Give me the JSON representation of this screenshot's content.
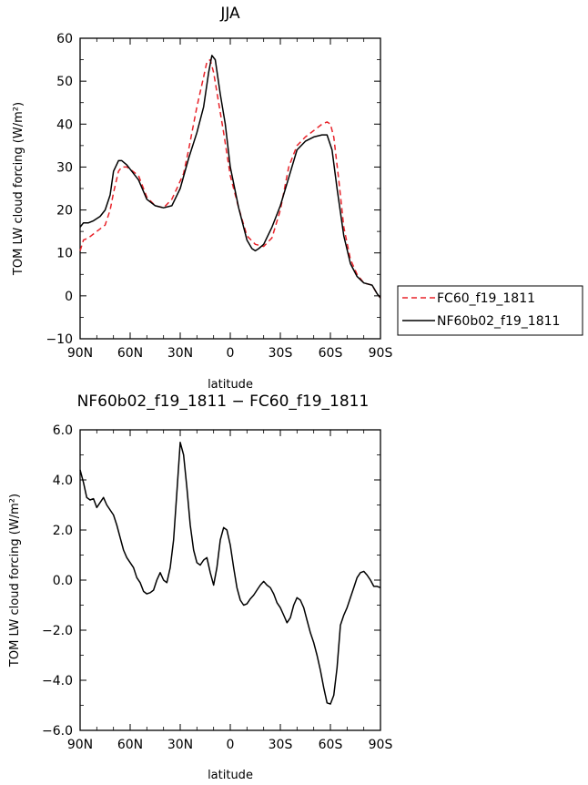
{
  "chart_data": [
    {
      "type": "line",
      "title": "JJA",
      "xlabel": "latitude",
      "ylabel": "TOM LW cloud forcing (W/m²)",
      "xticks": [
        "90N",
        "60N",
        "30N",
        "0",
        "30S",
        "60S",
        "90S"
      ],
      "yticks": [
        "60",
        "50",
        "40",
        "30",
        "20",
        "10",
        "0",
        "−10"
      ],
      "xlim": [
        90,
        -90
      ],
      "ylim": [
        -10,
        60
      ],
      "series": [
        {
          "name": "FC60_f19_1811",
          "color": "#e8232a",
          "dash": "dashed",
          "x": [
            90,
            88,
            85,
            80,
            75,
            72,
            70,
            67,
            65,
            62,
            60,
            55,
            50,
            45,
            40,
            35,
            32,
            28,
            25,
            20,
            16,
            14,
            12,
            10,
            7,
            4,
            0,
            -5,
            -10,
            -15,
            -20,
            -25,
            -30,
            -35,
            -40,
            -45,
            -50,
            -55,
            -58,
            -60,
            -62,
            -65,
            -68,
            -72,
            -76,
            -80,
            -85,
            -88,
            -90
          ],
          "y": [
            10.5,
            13,
            13.5,
            15,
            16.5,
            20,
            24,
            29,
            30,
            30,
            29.5,
            28,
            23,
            21,
            20.5,
            22.5,
            25,
            28.5,
            34,
            44,
            51,
            54.5,
            55,
            52,
            45,
            38,
            28,
            20.5,
            14,
            12,
            11.5,
            13.5,
            20,
            30,
            35,
            37,
            38.5,
            40,
            40.5,
            40,
            37,
            27,
            16,
            8.5,
            5,
            3,
            2.5,
            0.5,
            -0.5
          ]
        },
        {
          "name": "NF60b02_f19_1811",
          "color": "#000000",
          "dash": "solid",
          "x": [
            90,
            88,
            85,
            82,
            78,
            75,
            72,
            70,
            67,
            65,
            62,
            60,
            55,
            50,
            45,
            40,
            35,
            30,
            25,
            20,
            16,
            13,
            11,
            9,
            6,
            3,
            0,
            -5,
            -10,
            -13,
            -15,
            -17,
            -20,
            -25,
            -30,
            -35,
            -40,
            -45,
            -50,
            -55,
            -58,
            -61,
            -64,
            -68,
            -72,
            -76,
            -80,
            -85,
            -88,
            -90
          ],
          "y": [
            16,
            17,
            17,
            17.5,
            18.5,
            20,
            23.5,
            29,
            31.5,
            31.5,
            30.5,
            29.5,
            27,
            22.5,
            21,
            20.5,
            21,
            25,
            32,
            38,
            44,
            52,
            56,
            55,
            47,
            40,
            30,
            20.5,
            13,
            11,
            10.5,
            11,
            12,
            16,
            21,
            27.5,
            34,
            36,
            37,
            37.5,
            37.5,
            34,
            25,
            14,
            7.5,
            4.5,
            3,
            2.5,
            0.5,
            -0.5
          ]
        }
      ],
      "legend": {
        "placement": "right"
      }
    },
    {
      "type": "line",
      "title": "NF60b02_f19_1811 − FC60_f19_1811",
      "xlabel": "latitude",
      "ylabel": "TOM LW cloud forcing (W/m²)",
      "xticks": [
        "90N",
        "60N",
        "30N",
        "0",
        "30S",
        "60S",
        "90S"
      ],
      "yticks": [
        "6.0",
        "4.0",
        "2.0",
        "0.0",
        "−2.0",
        "−4.0",
        "−6.0"
      ],
      "xlim": [
        90,
        -90
      ],
      "ylim": [
        -6,
        6
      ],
      "series": [
        {
          "name": "",
          "color": "#000000",
          "dash": "solid",
          "x": [
            90,
            88,
            86,
            84,
            82,
            80,
            78,
            76,
            74,
            72,
            70,
            68,
            66,
            64,
            62,
            60,
            58,
            56,
            54,
            52,
            50,
            48,
            46,
            44,
            42,
            40,
            38,
            36,
            34,
            32,
            30,
            28,
            26,
            24,
            22,
            20,
            18,
            16,
            14,
            12,
            10,
            8,
            6,
            4,
            2,
            0,
            -2,
            -4,
            -6,
            -8,
            -10,
            -12,
            -14,
            -16,
            -18,
            -20,
            -22,
            -24,
            -26,
            -28,
            -30,
            -32,
            -34,
            -36,
            -38,
            -40,
            -42,
            -44,
            -46,
            -48,
            -50,
            -52,
            -54,
            -56,
            -58,
            -60,
            -62,
            -64,
            -66,
            -68,
            -70,
            -72,
            -74,
            -76,
            -78,
            -80,
            -82,
            -84,
            -86,
            -88,
            -90
          ],
          "y": [
            4.4,
            3.9,
            3.3,
            3.2,
            3.25,
            2.9,
            3.1,
            3.3,
            3.0,
            2.8,
            2.6,
            2.2,
            1.7,
            1.2,
            0.9,
            0.7,
            0.5,
            0.1,
            -0.1,
            -0.45,
            -0.55,
            -0.5,
            -0.4,
            0.0,
            0.3,
            0.0,
            -0.1,
            0.5,
            1.6,
            3.5,
            5.5,
            5.0,
            3.7,
            2.2,
            1.2,
            0.7,
            0.6,
            0.8,
            0.9,
            0.3,
            -0.2,
            0.5,
            1.6,
            2.1,
            2.0,
            1.4,
            0.5,
            -0.3,
            -0.8,
            -1.0,
            -0.95,
            -0.75,
            -0.6,
            -0.4,
            -0.2,
            -0.05,
            -0.2,
            -0.3,
            -0.55,
            -0.9,
            -1.1,
            -1.4,
            -1.7,
            -1.5,
            -1.0,
            -0.7,
            -0.8,
            -1.1,
            -1.6,
            -2.1,
            -2.5,
            -3.0,
            -3.6,
            -4.3,
            -4.9,
            -4.95,
            -4.6,
            -3.5,
            -1.8,
            -1.4,
            -1.1,
            -0.7,
            -0.3,
            0.1,
            0.3,
            0.35,
            0.2,
            0.0,
            -0.25,
            -0.25,
            -0.3
          ]
        }
      ]
    }
  ]
}
